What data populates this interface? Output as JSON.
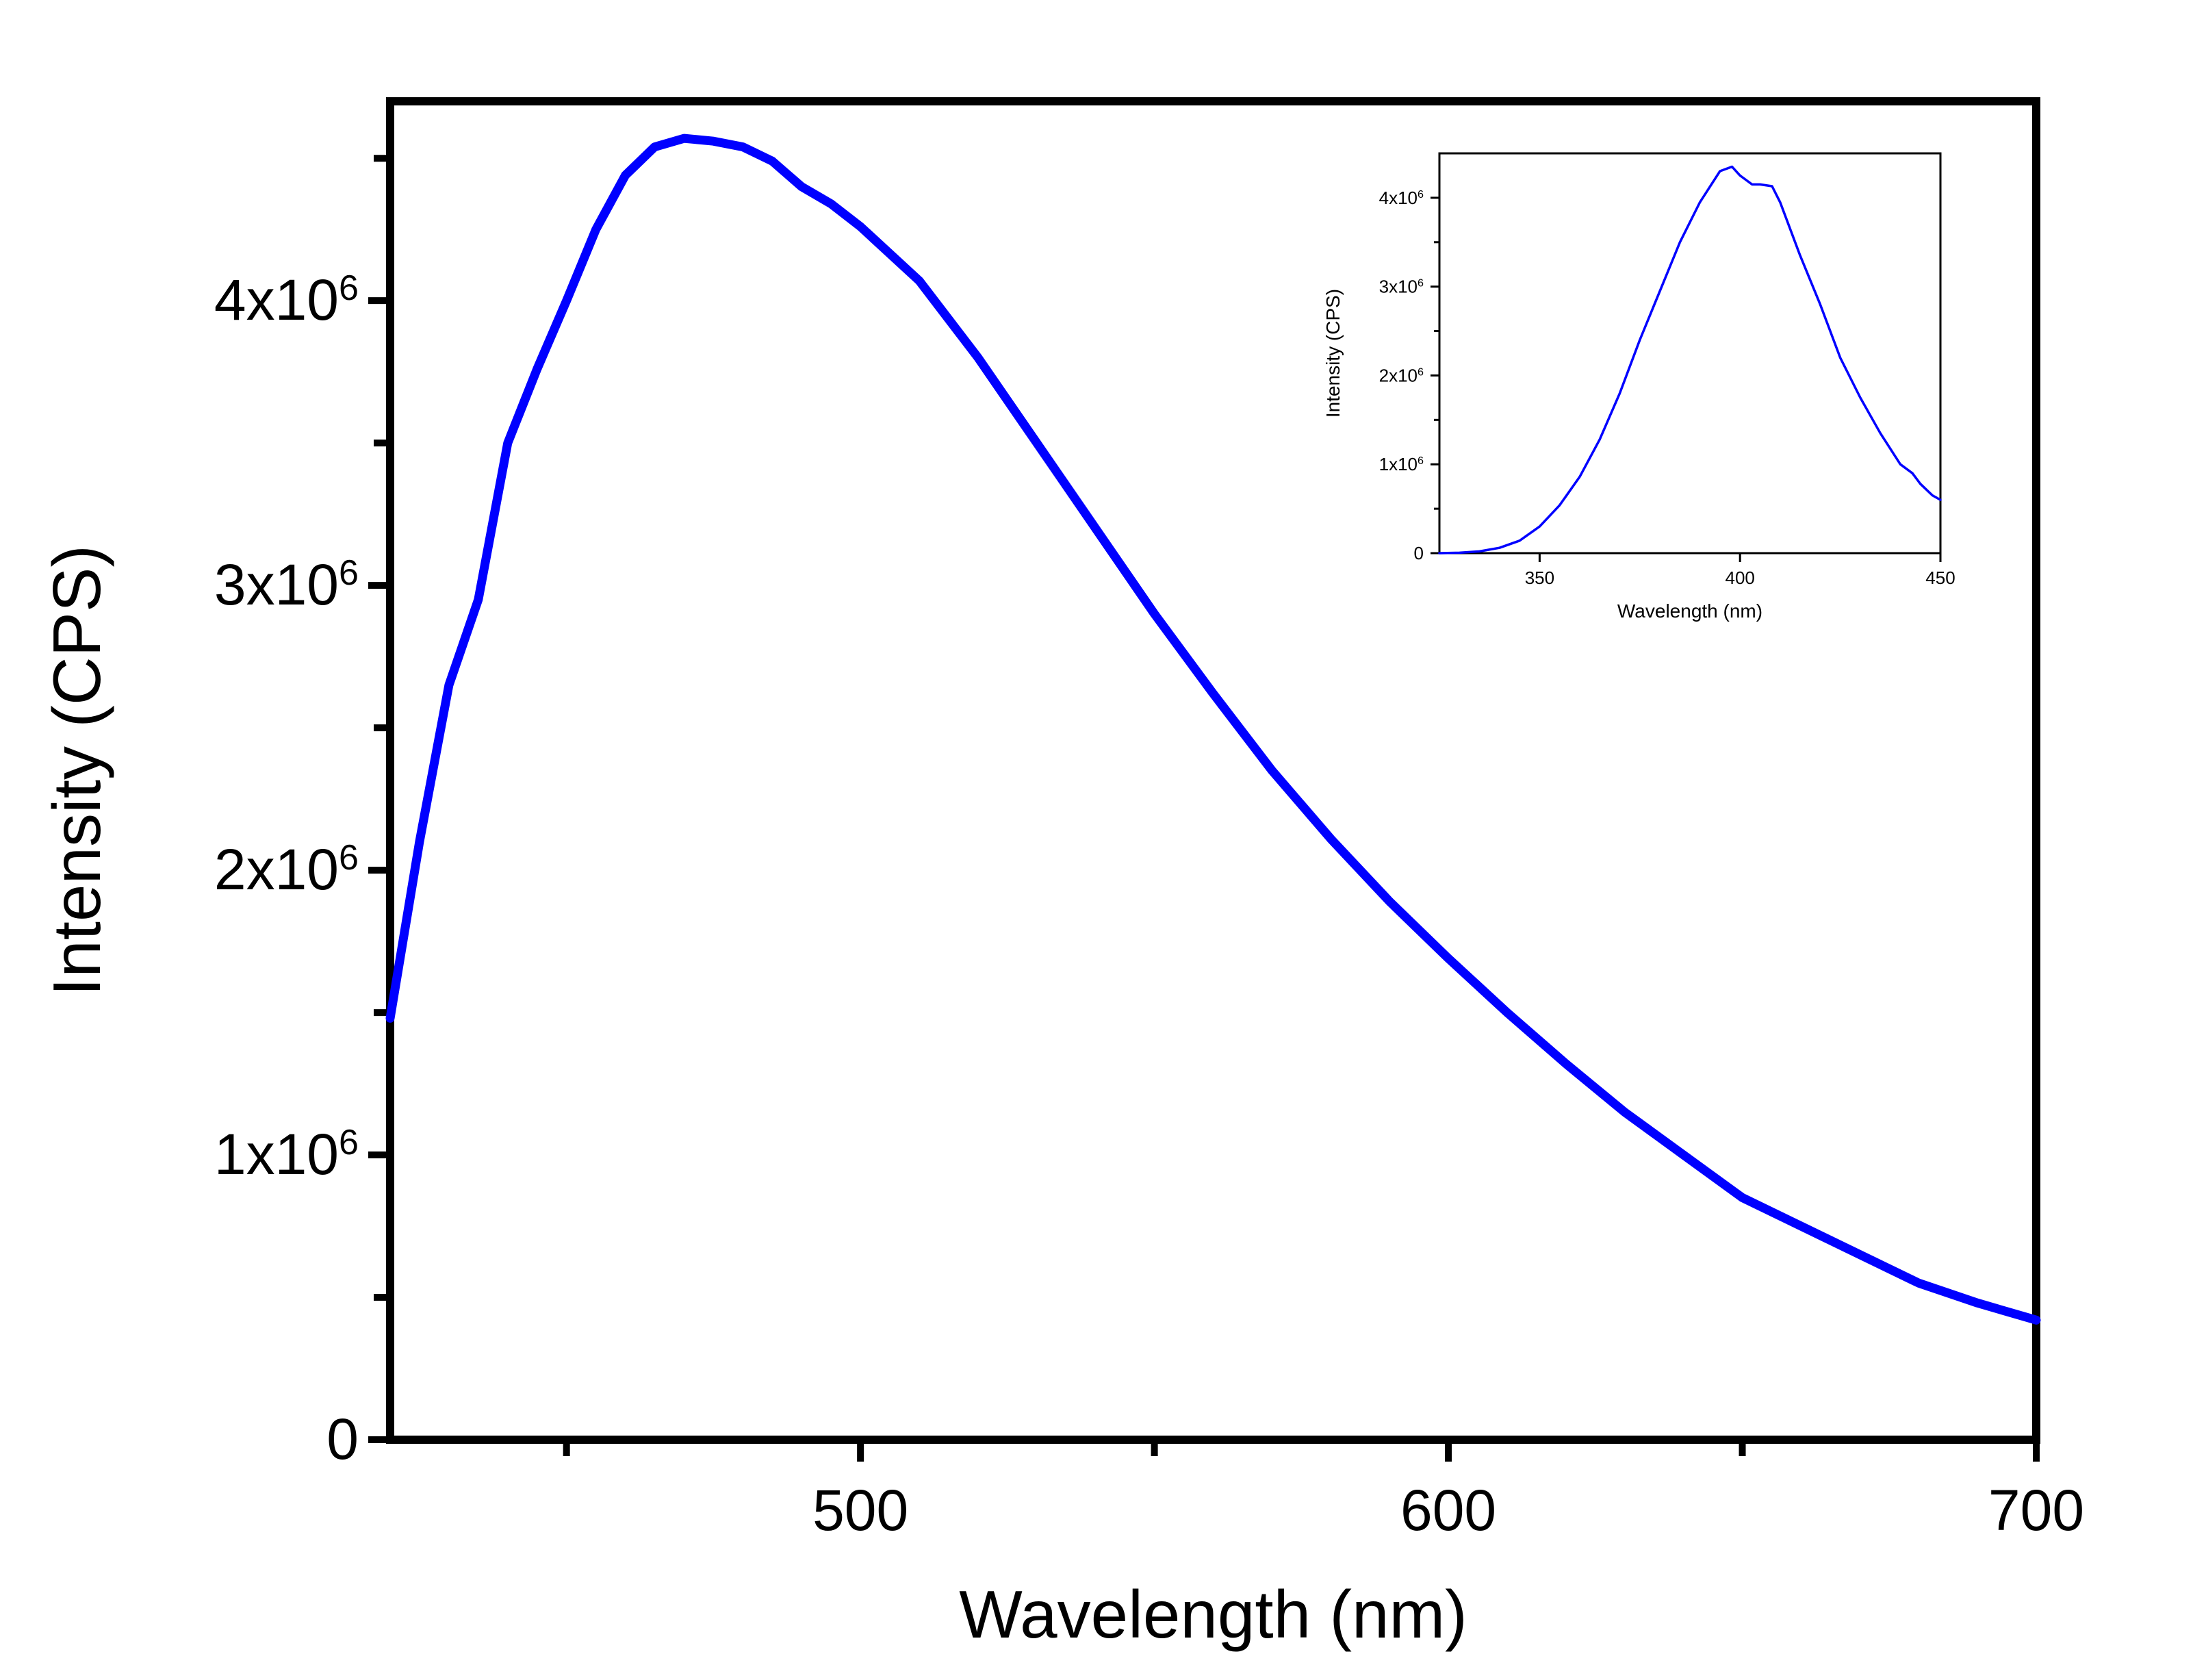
{
  "main_chart": {
    "xlabel": "Wavelength (nm)",
    "ylabel": "Intensity (CPS)",
    "x_tick_labels": [
      "500",
      "600",
      "700"
    ],
    "y_tick_labels": [
      {
        "mantissa": "0",
        "exponent": ""
      },
      {
        "mantissa": "1x10",
        "exponent": "6"
      },
      {
        "mantissa": "2x10",
        "exponent": "6"
      },
      {
        "mantissa": "3x10",
        "exponent": "6"
      },
      {
        "mantissa": "4x10",
        "exponent": "6"
      }
    ]
  },
  "inset_chart": {
    "xlabel": "Wavelength (nm)",
    "ylabel": "Intensity (CPS)",
    "x_tick_labels": [
      "350",
      "400",
      "450"
    ],
    "y_tick_labels": [
      {
        "mantissa": "0",
        "exponent": ""
      },
      {
        "mantissa": "1x10",
        "exponent": "6"
      },
      {
        "mantissa": "2x10",
        "exponent": "6"
      },
      {
        "mantissa": "3x10",
        "exponent": "6"
      },
      {
        "mantissa": "4x10",
        "exponent": "6"
      }
    ]
  },
  "colors": {
    "series": "#0000ff",
    "axes": "#000000"
  },
  "chart_data": [
    {
      "type": "line",
      "xlabel": "Wavelength (nm)",
      "ylabel": "Intensity (CPS)",
      "xlim": [
        420,
        700
      ],
      "ylim": [
        0,
        4700000
      ],
      "x_ticks": [
        500,
        600,
        700
      ],
      "x_minor_ticks": [
        450,
        550,
        650
      ],
      "y_ticks": [
        0,
        1000000,
        2000000,
        3000000,
        4000000
      ],
      "y_minor_ticks": [
        500000,
        1500000,
        2500000,
        3500000,
        4500000
      ],
      "grid": false,
      "series": [
        {
          "color": "#0000ff",
          "x": [
            420,
            425,
            430,
            435,
            440,
            445,
            450,
            455,
            460,
            465,
            470,
            475,
            480,
            485,
            490,
            495,
            500,
            510,
            520,
            530,
            540,
            550,
            560,
            570,
            580,
            590,
            600,
            610,
            620,
            630,
            640,
            650,
            660,
            670,
            680,
            690,
            700
          ],
          "y": [
            1480000,
            2100000,
            2650000,
            2950000,
            3500000,
            3760000,
            4000000,
            4250000,
            4440000,
            4540000,
            4570000,
            4560000,
            4540000,
            4490000,
            4400000,
            4340000,
            4260000,
            4070000,
            3800000,
            3500000,
            3200000,
            2900000,
            2620000,
            2350000,
            2110000,
            1890000,
            1690000,
            1500000,
            1320000,
            1150000,
            1000000,
            850000,
            750000,
            650000,
            550000,
            480000,
            420000
          ]
        }
      ]
    },
    {
      "type": "line",
      "xlabel": "Wavelength (nm)",
      "ylabel": "Intensity (CPS)",
      "xlim": [
        325,
        450
      ],
      "ylim": [
        0,
        4500000
      ],
      "x_ticks": [
        350,
        400,
        450
      ],
      "y_ticks": [
        0,
        1000000,
        2000000,
        3000000,
        4000000
      ],
      "y_minor_ticks": [
        500000,
        1500000,
        2500000,
        3500000
      ],
      "grid": false,
      "series": [
        {
          "color": "#0000ff",
          "x": [
            325,
            330,
            335,
            340,
            345,
            350,
            355,
            360,
            365,
            370,
            375,
            380,
            385,
            390,
            395,
            398,
            400,
            403,
            405,
            408,
            410,
            415,
            420,
            425,
            430,
            435,
            440,
            443,
            445,
            448,
            450
          ],
          "y": [
            0,
            5000,
            20000,
            60000,
            140000,
            300000,
            540000,
            860000,
            1280000,
            1800000,
            2400000,
            2950000,
            3500000,
            3950000,
            4300000,
            4350000,
            4250000,
            4150000,
            4150000,
            4130000,
            3950000,
            3350000,
            2800000,
            2200000,
            1750000,
            1350000,
            1000000,
            900000,
            780000,
            650000,
            600000
          ]
        }
      ]
    }
  ]
}
